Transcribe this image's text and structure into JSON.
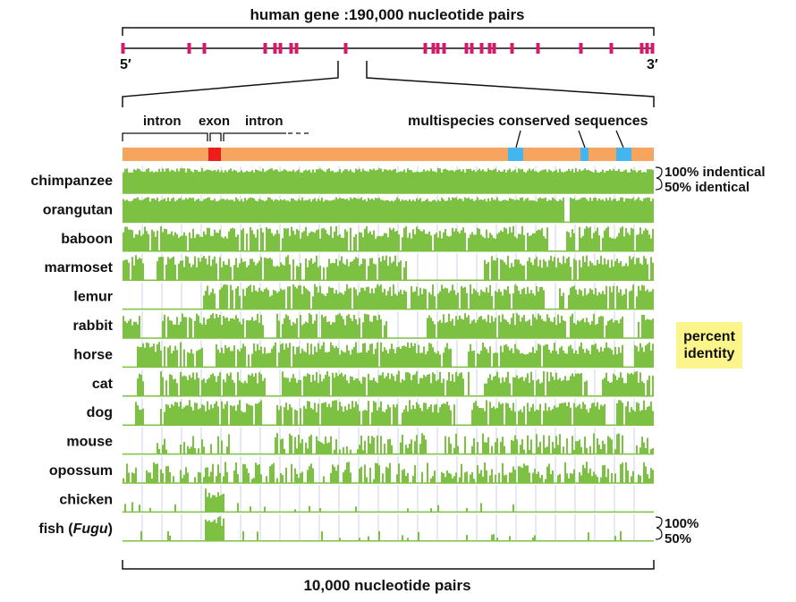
{
  "gene": {
    "title": "human gene :190,000 nucleotide pairs",
    "five_prime": "5′",
    "three_prime": "3′",
    "exon_marker_color": "#d6196b"
  },
  "annotations": {
    "intron_left": "intron",
    "exon": "exon",
    "intron_right": "intron",
    "conserved": "multispecies conserved sequences"
  },
  "colors": {
    "intron_bar": "#f7a45e",
    "exon": "#ee1c1c",
    "conserved": "#43b6f0",
    "identity": "#7cc142",
    "grid": "#c9d4ea",
    "legend_bg": "#fcf58c"
  },
  "scale": {
    "top_100": "100% indentical",
    "top_50": "50% identical",
    "bottom_100": "100%",
    "bottom_50": "50%",
    "bottom_label": "10,000 nucleotide pairs"
  },
  "legend": {
    "line1": "percent",
    "line2": "identity"
  },
  "species": [
    {
      "name": "chimpanzee",
      "level": 0.97
    },
    {
      "name": "orangutan",
      "level": 0.93
    },
    {
      "name": "baboon",
      "level": 0.9
    },
    {
      "name": "marmoset",
      "level": 0.75
    },
    {
      "name": "lemur",
      "level": 0.7
    },
    {
      "name": "rabbit",
      "level": 0.62
    },
    {
      "name": "horse",
      "level": 0.72
    },
    {
      "name": "cat",
      "level": 0.7
    },
    {
      "name": "dog",
      "level": 0.7
    },
    {
      "name": "mouse",
      "level": 0.55
    },
    {
      "name": "opossum",
      "level": 0.5
    },
    {
      "name": "chicken",
      "level": 0.15
    },
    {
      "name": "fish (Fugu)",
      "name_prefix": "fish (",
      "name_italic": "Fugu",
      "name_suffix": ")",
      "level": 0.1
    }
  ]
}
